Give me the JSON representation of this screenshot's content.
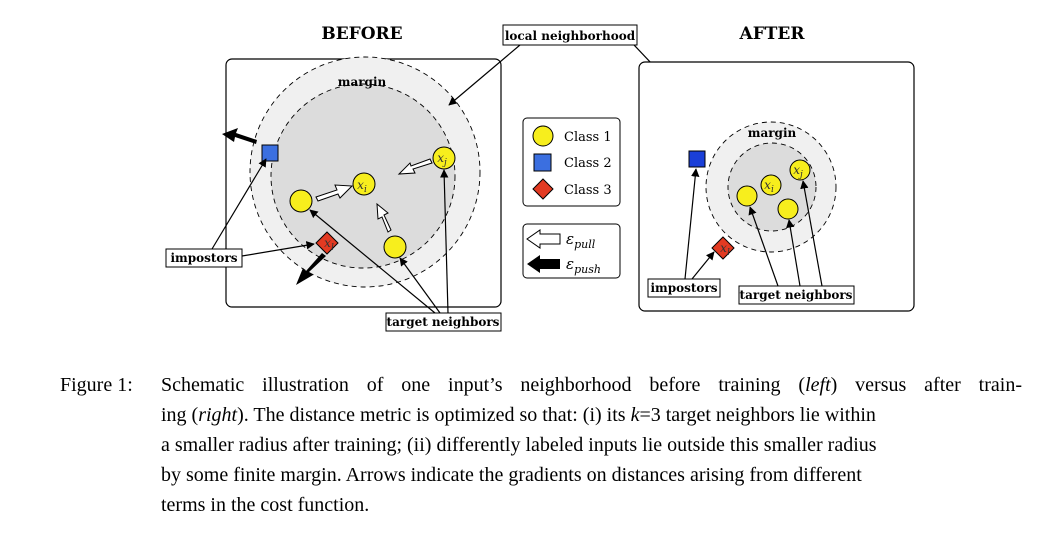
{
  "diagram": {
    "title_before": "BEFORE",
    "title_after": "AFTER",
    "label_local_neighborhood": "local neighborhood",
    "label_margin": "margin",
    "label_impostors": "impostors",
    "label_target_neighbors": "target neighbors",
    "var_xi": "x",
    "var_xi_sub": "i",
    "var_xj": "x",
    "var_xj_sub": "j",
    "var_xl": "x",
    "var_xl_sub": "l",
    "legend": {
      "class1": "Class 1",
      "class2": "Class 2",
      "class3": "Class 3",
      "eps_symbol": "ε",
      "pull": "pull",
      "push": "push"
    },
    "colors": {
      "class1": "#f7ee1d",
      "class2": "#3b6fe0",
      "class3": "#e23a22",
      "neighborhood_fill": "#dcdcdc",
      "margin_fill": "#f0f0f0"
    }
  },
  "caption": {
    "label": "Figure 1:",
    "line1_a": "Schematic illustration of one input’s neighborhood before training (",
    "line1_left": "left",
    "line1_b": ") versus after train-",
    "line2_a": "ing (",
    "line2_right": "right",
    "line2_b": "). The distance metric is optimized so that: (i) its ",
    "line2_k": "k",
    "line2_c": "=3 target neighbors lie within",
    "line3": "a smaller radius after training; (ii) differently labeled inputs lie outside this smaller radius",
    "line4": "by some finite margin. Arrows indicate the gradients on distances arising from different",
    "line5": "terms in the cost function."
  }
}
